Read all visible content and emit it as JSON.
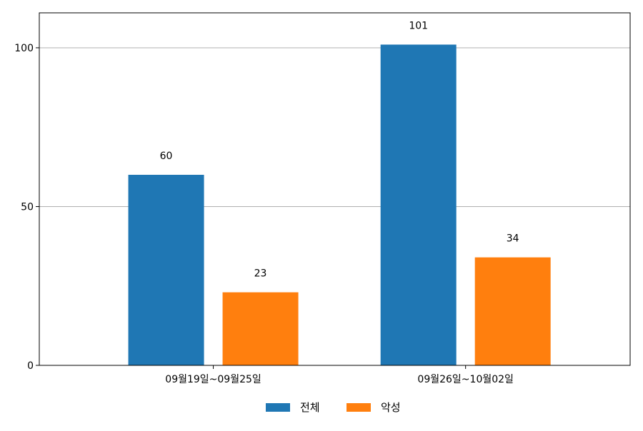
{
  "chart_data": {
    "type": "bar",
    "categories": [
      "09월19일~09월25일",
      "09월26일~10월02일"
    ],
    "series": [
      {
        "name": "전체",
        "values": [
          60,
          101
        ],
        "color": "#1f77b4"
      },
      {
        "name": "악성",
        "values": [
          23,
          34
        ],
        "color": "#ff7f0e"
      }
    ],
    "yticks": [
      0,
      50,
      100
    ],
    "ylim": [
      0,
      111
    ],
    "grid": "y-major",
    "legend": "bottom-center",
    "data_labels": true
  }
}
